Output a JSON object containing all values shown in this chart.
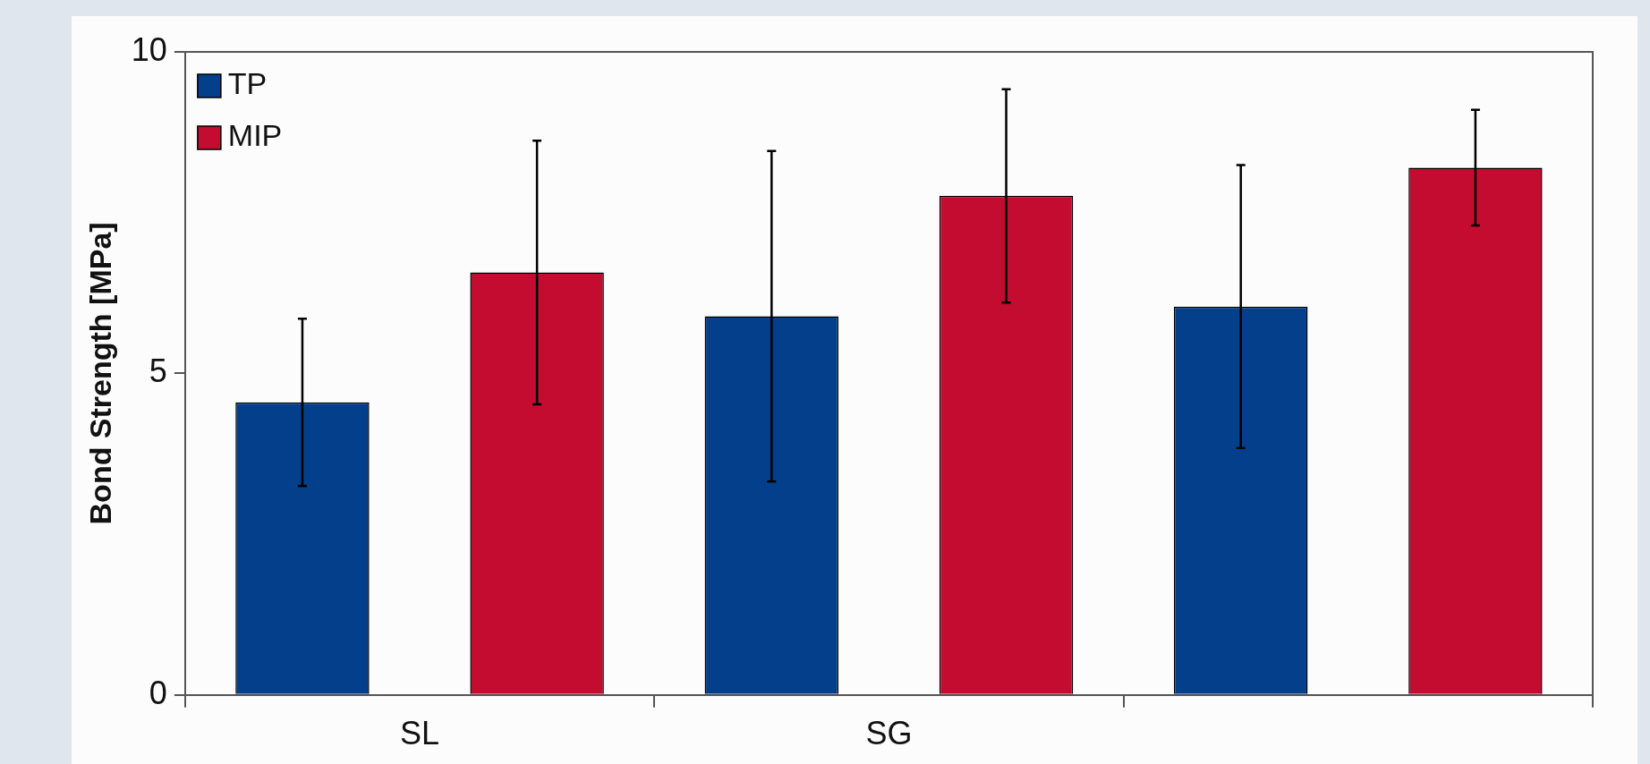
{
  "chart_data": {
    "type": "bar",
    "ylabel": "Bond Strength [MPa]",
    "categories": [
      "SL",
      "SG",
      null
    ],
    "series": [
      {
        "name": "TP",
        "color": "#043f8b",
        "values": [
          4.55,
          5.89,
          6.04
        ],
        "errors": [
          1.3,
          2.57,
          2.2
        ]
      },
      {
        "name": "MIP",
        "color": "#c30c2f",
        "values": [
          6.57,
          7.76,
          8.2
        ],
        "errors": [
          2.05,
          1.66,
          0.9
        ]
      }
    ],
    "ylim": [
      0,
      10
    ],
    "yticks": [
      0,
      5,
      10
    ],
    "grid": false,
    "legend": "top left"
  }
}
